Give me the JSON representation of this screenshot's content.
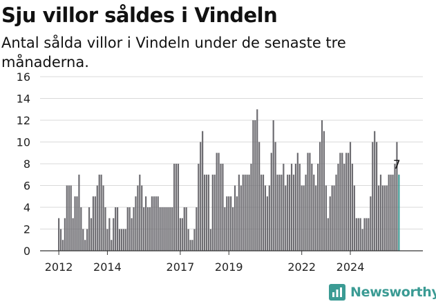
{
  "header": {
    "title": "Sju villor såldes i Vindeln",
    "subtitle": "Antal sålda villor i Vindeln under de senaste tre månaderna."
  },
  "brand": {
    "name": "Newsworthy",
    "color": "#3b9b94"
  },
  "colors": {
    "bar": "#6d6c71",
    "highlight": "#3b9b94",
    "grid": "#d9d9d9",
    "axis": "#333333"
  },
  "chart_data": {
    "type": "bar",
    "title": "Sju villor såldes i Vindeln",
    "subtitle": "Antal sålda villor i Vindeln under de senaste tre månaderna.",
    "start": "2012-01",
    "frequency": "monthly",
    "values": [
      3,
      2,
      1,
      3,
      6,
      6,
      6,
      3,
      5,
      5,
      7,
      4,
      2,
      1,
      2,
      4,
      3,
      5,
      5,
      6,
      7,
      7,
      6,
      4,
      2,
      3,
      1,
      3,
      4,
      4,
      2,
      2,
      2,
      2,
      4,
      4,
      3,
      4,
      5,
      6,
      7,
      6,
      4,
      5,
      4,
      4,
      5,
      5,
      5,
      5,
      4,
      4,
      4,
      4,
      4,
      4,
      4,
      8,
      8,
      8,
      3,
      3,
      4,
      4,
      2,
      1,
      1,
      2,
      4,
      8,
      10,
      11,
      7,
      7,
      7,
      2,
      7,
      7,
      9,
      9,
      8,
      8,
      4,
      5,
      5,
      5,
      4,
      6,
      5,
      7,
      6,
      7,
      7,
      7,
      7,
      8,
      12,
      12,
      13,
      10,
      7,
      7,
      6,
      5,
      6,
      9,
      12,
      10,
      7,
      7,
      7,
      8,
      6,
      7,
      7,
      8,
      7,
      8,
      9,
      8,
      6,
      6,
      7,
      9,
      9,
      8,
      7,
      6,
      8,
      10,
      12,
      11,
      6,
      3,
      5,
      6,
      6,
      7,
      8,
      9,
      9,
      8,
      9,
      9,
      10,
      8,
      6,
      3,
      3,
      3,
      2,
      3,
      3,
      3,
      5,
      10,
      11,
      10,
      6,
      7,
      6,
      6,
      6,
      7,
      7,
      7,
      8,
      10,
      7
    ],
    "highlight_last": true,
    "last_value_label": "7",
    "x_tick_labels": [
      "2012",
      "2014",
      "2017",
      "2019",
      "2022",
      "2024"
    ],
    "x_tick_months": [
      "2012-01",
      "2014-01",
      "2017-01",
      "2019-01",
      "2022-01",
      "2024-01"
    ],
    "y_ticks": [
      0,
      2,
      4,
      6,
      8,
      10,
      12,
      14,
      16
    ],
    "ylim": [
      0,
      16
    ],
    "grid": true,
    "legend": "none"
  }
}
